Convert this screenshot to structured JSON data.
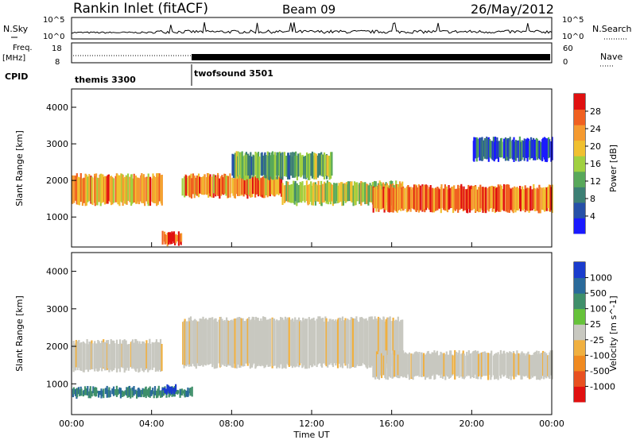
{
  "header": {
    "station": "Rankin Inlet (fitACF)",
    "beam": "Beam 09",
    "date": "26/May/2012"
  },
  "strips": {
    "nsky_label": "N.Sky",
    "nsky_ticks": [
      "10^5",
      "10^0"
    ],
    "nsearch_label": "N.Search",
    "freq_label_1": "Freq.",
    "freq_label_2": "[MHz]",
    "freq_ticks": [
      "18",
      "8"
    ],
    "nave_ticks": [
      "60",
      "0"
    ],
    "nave_label": "Nave",
    "cpid_label": "CPID",
    "cpid_modes": [
      {
        "name": "themis 3300",
        "start_hour": 0
      },
      {
        "name": "twofsound 3501",
        "start_hour": 6
      }
    ]
  },
  "colors": {
    "power": [
      "#1a1aff",
      "#2650a8",
      "#3c7f74",
      "#58a85a",
      "#a0d040",
      "#f0c030",
      "#f59a30",
      "#f06020",
      "#e01010"
    ],
    "velocity": [
      "#1a3ccd",
      "#2a6a9a",
      "#3f8f6a",
      "#66c23a",
      "#c8c8c0",
      "#f0b040",
      "#f08a20",
      "#e85020",
      "#e01010"
    ],
    "ground_scatter": "#c8c8c0"
  },
  "chart_data": [
    {
      "type": "heatmap",
      "panel": "power",
      "xlabel": "Time UT",
      "ylabel": "Slant Range [km]",
      "xlim": [
        0,
        24
      ],
      "ylim": [
        180,
        4500
      ],
      "x_tick_labels": [
        "00:00",
        "04:00",
        "08:00",
        "12:00",
        "16:00",
        "20:00",
        "00:00"
      ],
      "y_ticks": [
        1000,
        2000,
        3000,
        4000
      ],
      "colorbar_label": "Power [dB]",
      "colorbar_ticks": [
        "28",
        "24",
        "20",
        "16",
        "12",
        "8",
        "4"
      ],
      "colorbar_range": [
        0,
        32
      ],
      "bands": [
        {
          "t0": 0.0,
          "t1": 4.5,
          "r0": 1300,
          "r1": 2200,
          "level": 22
        },
        {
          "t0": 5.5,
          "t1": 10.5,
          "r0": 1500,
          "r1": 2200,
          "level": 24
        },
        {
          "t0": 8.0,
          "t1": 13.0,
          "r0": 2000,
          "r1": 2800,
          "level": 12
        },
        {
          "t0": 10.5,
          "t1": 16.5,
          "r0": 1300,
          "r1": 2000,
          "level": 17
        },
        {
          "t0": 15.0,
          "t1": 24.0,
          "r0": 1100,
          "r1": 1900,
          "level": 25
        },
        {
          "t0": 4.5,
          "t1": 5.5,
          "r0": 200,
          "r1": 650,
          "level": 29
        },
        {
          "t0": 20.0,
          "t1": 24.0,
          "r0": 2500,
          "r1": 3200,
          "level": 6
        }
      ]
    },
    {
      "type": "heatmap",
      "panel": "velocity",
      "xlabel": "Time UT",
      "ylabel": "Slant Range [km]",
      "xlim": [
        0,
        24
      ],
      "ylim": [
        180,
        4500
      ],
      "x_tick_labels": [
        "00:00",
        "04:00",
        "08:00",
        "12:00",
        "16:00",
        "20:00",
        "00:00"
      ],
      "y_ticks": [
        1000,
        2000,
        3000,
        4000
      ],
      "colorbar_label": "Velocity [m s^-1]",
      "colorbar_ticks": [
        "1000",
        "500",
        "100",
        "25",
        "-25",
        "-100",
        "-500",
        "-1000"
      ],
      "bands": [
        {
          "t0": 0.0,
          "t1": 4.5,
          "r0": 1300,
          "r1": 2200,
          "value": 0
        },
        {
          "t0": 5.5,
          "t1": 16.5,
          "r0": 1400,
          "r1": 2800,
          "value": 0
        },
        {
          "t0": 15.0,
          "t1": 24.0,
          "r0": 1100,
          "r1": 1900,
          "value": 0
        },
        {
          "t0": 0.0,
          "t1": 6.0,
          "r0": 600,
          "r1": 950,
          "value": 300
        },
        {
          "t0": 4.5,
          "t1": 5.2,
          "r0": 700,
          "r1": 1000,
          "value": 900
        }
      ]
    }
  ]
}
